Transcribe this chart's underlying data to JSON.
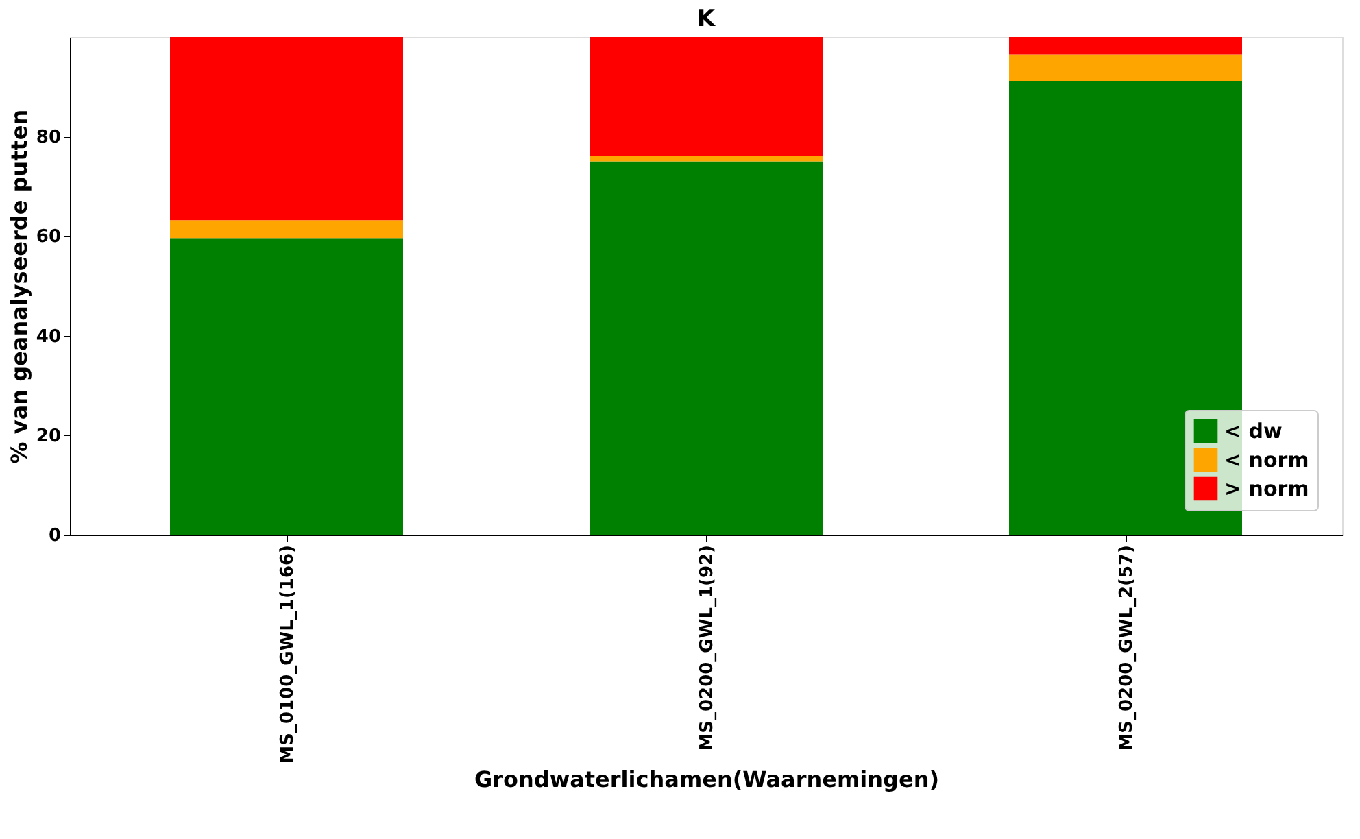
{
  "chart_data": {
    "type": "bar",
    "title": "K",
    "xlabel": "Grondwaterlichamen(Waarnemingen)",
    "ylabel": "% van geanalyseerde putten",
    "categories": [
      "MS_0100_GWL_1(166)",
      "MS_0200_GWL_1(92)",
      "MS_0200_GWL_2(57)"
    ],
    "stacked": true,
    "ylim": [
      0,
      100
    ],
    "yticks": [
      0,
      20,
      40,
      60,
      80
    ],
    "grid": false,
    "legend": "bottom right",
    "series": [
      {
        "name": "< dw",
        "color": "#008000",
        "values": [
          59.6,
          75.0,
          91.2
        ]
      },
      {
        "name": "< norm",
        "color": "#ffa500",
        "values": [
          3.6,
          1.1,
          5.3
        ]
      },
      {
        "name": "> norm",
        "color": "#ff0000",
        "values": [
          36.8,
          23.9,
          3.5
        ]
      }
    ]
  }
}
